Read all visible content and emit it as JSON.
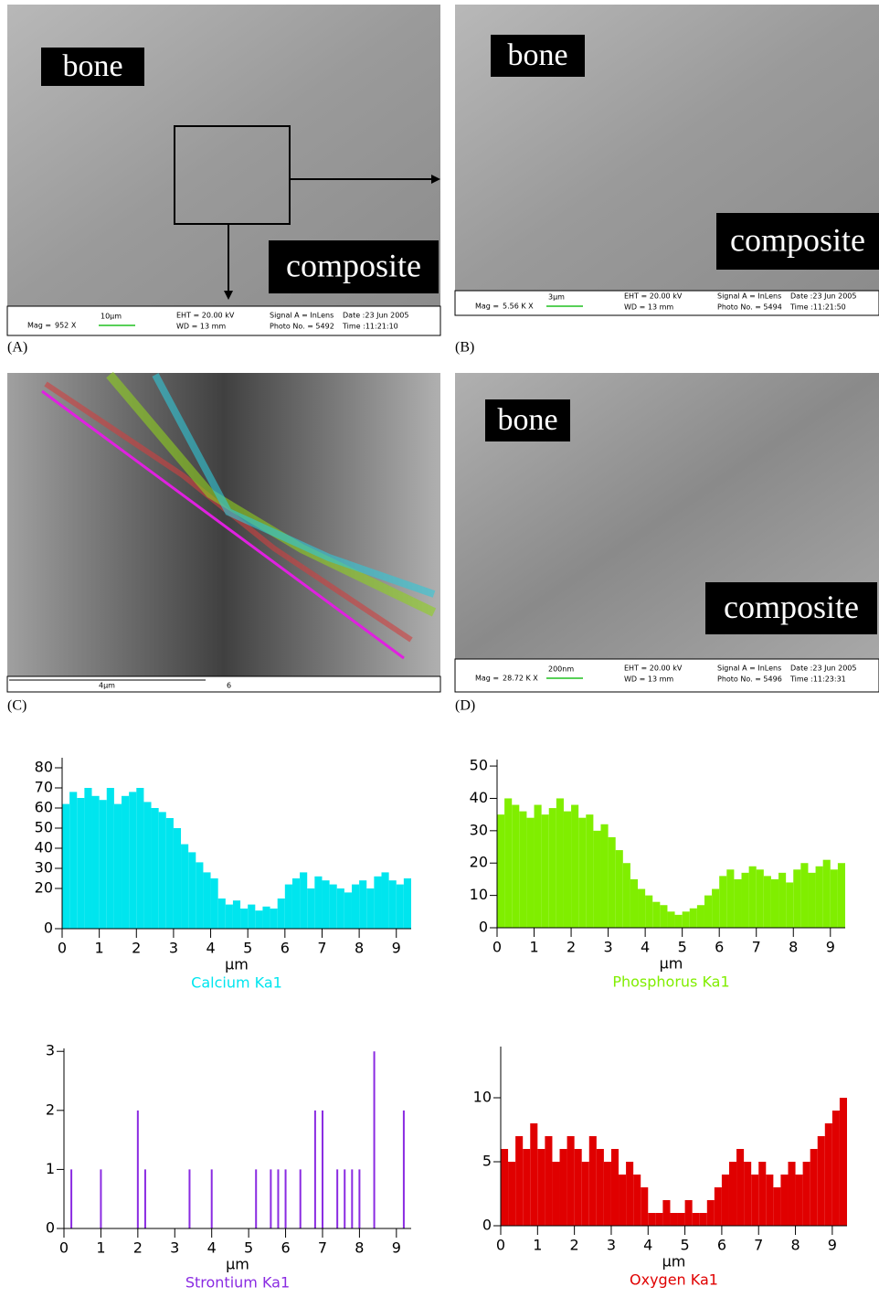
{
  "panels": [
    {
      "label": "(A)",
      "texts": [
        "bone",
        "composite"
      ],
      "info": [
        "Mag =",
        "952 X",
        "10µm",
        "EHT = 20.00 kV",
        "WD =  13 mm",
        "Signal A = InLens",
        "Photo No. = 5492",
        "Date :23 Jun 2005",
        "Time :11:21:10"
      ]
    },
    {
      "label": "(B)",
      "texts": [
        "bone",
        "composite"
      ],
      "info": [
        "Mag =",
        "5.56 K X",
        "3µm",
        "EHT = 20.00 kV",
        "WD =  13 mm",
        "Signal A = InLens",
        "Photo No. = 5494",
        "Date :23 Jun 2005",
        "Time :11:21:50"
      ]
    },
    {
      "label": "(C)",
      "info": [
        "4µm",
        "6"
      ]
    },
    {
      "label": "(D)",
      "texts": [
        "bone",
        "composite"
      ],
      "info": [
        "Mag =",
        "28.72 K X",
        "200nm",
        "EHT = 20.00 kV",
        "WD =  13 mm",
        "Signal A = InLens",
        "Photo No. = 5496",
        "Date :23 Jun 2005",
        "Time :11:23:31"
      ]
    }
  ],
  "chart_data": [
    {
      "type": "bar",
      "title": "Calcium Ka1",
      "x_label": "µm",
      "color": "#00e5ee",
      "x": [
        0,
        0.2,
        0.4,
        0.6,
        0.8,
        1,
        1.2,
        1.4,
        1.6,
        1.8,
        2,
        2.2,
        2.4,
        2.6,
        2.8,
        3,
        3.2,
        3.4,
        3.6,
        3.8,
        4,
        4.2,
        4.4,
        4.6,
        4.8,
        5,
        5.2,
        5.4,
        5.6,
        5.8,
        6,
        6.2,
        6.4,
        6.6,
        6.8,
        7,
        7.2,
        7.4,
        7.6,
        7.8,
        8,
        8.2,
        8.4,
        8.6,
        8.8,
        9,
        9.2
      ],
      "values": [
        62,
        68,
        65,
        70,
        66,
        64,
        70,
        62,
        66,
        68,
        70,
        63,
        60,
        58,
        55,
        50,
        42,
        38,
        33,
        28,
        25,
        15,
        12,
        14,
        10,
        12,
        9,
        11,
        10,
        15,
        22,
        25,
        28,
        20,
        26,
        24,
        22,
        20,
        18,
        22,
        24,
        20,
        26,
        28,
        24,
        22,
        25
      ],
      "xlim": [
        0,
        9.4
      ],
      "xticks": [
        0,
        1,
        2,
        3,
        4,
        5,
        6,
        7,
        8,
        9
      ],
      "ylim": [
        0,
        85
      ],
      "yticks": [
        0,
        20,
        30,
        40,
        50,
        60,
        70,
        80
      ]
    },
    {
      "type": "bar",
      "title": "Phosphorus Ka1",
      "x_label": "µm",
      "color": "#80ee00",
      "x": [
        0,
        0.2,
        0.4,
        0.6,
        0.8,
        1,
        1.2,
        1.4,
        1.6,
        1.8,
        2,
        2.2,
        2.4,
        2.6,
        2.8,
        3,
        3.2,
        3.4,
        3.6,
        3.8,
        4,
        4.2,
        4.4,
        4.6,
        4.8,
        5,
        5.2,
        5.4,
        5.6,
        5.8,
        6,
        6.2,
        6.4,
        6.6,
        6.8,
        7,
        7.2,
        7.4,
        7.6,
        7.8,
        8,
        8.2,
        8.4,
        8.6,
        8.8,
        9,
        9.2
      ],
      "values": [
        35,
        40,
        38,
        36,
        34,
        38,
        35,
        37,
        40,
        36,
        38,
        34,
        35,
        30,
        32,
        28,
        24,
        20,
        15,
        12,
        10,
        8,
        7,
        5,
        4,
        5,
        6,
        7,
        10,
        12,
        16,
        18,
        15,
        17,
        19,
        18,
        16,
        15,
        17,
        14,
        18,
        20,
        17,
        19,
        21,
        18,
        20
      ],
      "xlim": [
        0,
        9.4
      ],
      "xticks": [
        0,
        1,
        2,
        3,
        4,
        5,
        6,
        7,
        8,
        9
      ],
      "ylim": [
        0,
        52
      ],
      "yticks": [
        0,
        10,
        20,
        30,
        40,
        50
      ]
    },
    {
      "type": "spike",
      "title": "Strontium Ka1",
      "x_label": "µm",
      "color": "#8a2be2",
      "x": [
        0.2,
        1,
        2,
        2.2,
        3.4,
        4,
        5.2,
        5.6,
        5.8,
        6,
        6.4,
        6.8,
        7,
        7.4,
        7.6,
        7.8,
        8,
        8.4,
        9.2
      ],
      "values": [
        1,
        1,
        2,
        1,
        1,
        1,
        1,
        1,
        1,
        1,
        1,
        2,
        2,
        1,
        1,
        1,
        1,
        3,
        2
      ],
      "xlim": [
        0,
        9.4
      ],
      "xticks": [
        0,
        1,
        2,
        3,
        4,
        5,
        6,
        7,
        8,
        9
      ],
      "ylim": [
        0,
        3.05
      ],
      "yticks": [
        0,
        1,
        2,
        3
      ]
    },
    {
      "type": "bar",
      "title": "Oxygen Ka1",
      "x_label": "µm",
      "color": "#e00000",
      "x": [
        0,
        0.2,
        0.4,
        0.6,
        0.8,
        1,
        1.2,
        1.4,
        1.6,
        1.8,
        2,
        2.2,
        2.4,
        2.6,
        2.8,
        3,
        3.2,
        3.4,
        3.6,
        3.8,
        4,
        4.2,
        4.4,
        4.6,
        4.8,
        5,
        5.2,
        5.4,
        5.6,
        5.8,
        6,
        6.2,
        6.4,
        6.6,
        6.8,
        7,
        7.2,
        7.4,
        7.6,
        7.8,
        8,
        8.2,
        8.4,
        8.6,
        8.8,
        9,
        9.2
      ],
      "values": [
        6,
        5,
        7,
        6,
        8,
        6,
        7,
        5,
        6,
        7,
        6,
        5,
        7,
        6,
        5,
        6,
        4,
        5,
        4,
        3,
        1,
        1,
        2,
        1,
        1,
        2,
        1,
        1,
        2,
        3,
        4,
        5,
        6,
        5,
        4,
        5,
        4,
        3,
        4,
        5,
        4,
        5,
        6,
        7,
        8,
        9,
        10
      ],
      "xlim": [
        0,
        9.4
      ],
      "xticks": [
        0,
        1,
        2,
        3,
        4,
        5,
        6,
        7,
        8,
        9
      ],
      "ylim": [
        0,
        14
      ],
      "yticks": [
        0,
        5,
        10
      ]
    }
  ]
}
